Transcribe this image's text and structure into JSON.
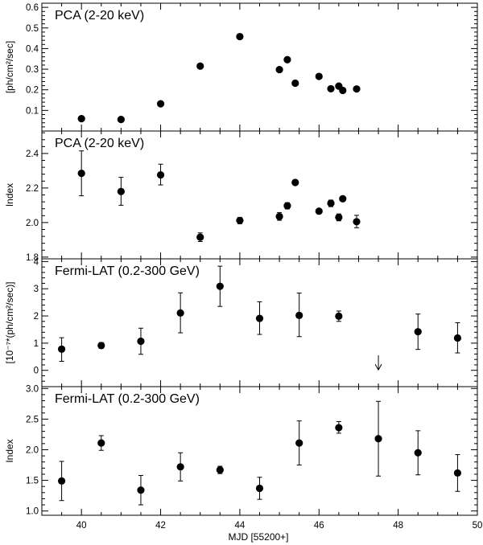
{
  "xaxis": {
    "label": "MJD [55200+]",
    "min": 39,
    "max": 50,
    "ticks": [
      40,
      42,
      44,
      46,
      48,
      50
    ]
  },
  "chart_data": [
    {
      "type": "scatter",
      "title": "PCA (2-20 keV)",
      "ylabel": "[ph/cm²/sec]",
      "ylim": [
        0,
        0.62
      ],
      "yticks": [
        0.1,
        0.2,
        0.3,
        0.4,
        0.5,
        0.6
      ],
      "points": [
        {
          "x": 40.0,
          "y": 0.06
        },
        {
          "x": 41.0,
          "y": 0.056
        },
        {
          "x": 42.0,
          "y": 0.132
        },
        {
          "x": 43.0,
          "y": 0.315
        },
        {
          "x": 44.0,
          "y": 0.458
        },
        {
          "x": 45.0,
          "y": 0.298
        },
        {
          "x": 45.2,
          "y": 0.346
        },
        {
          "x": 45.4,
          "y": 0.232
        },
        {
          "x": 46.0,
          "y": 0.265
        },
        {
          "x": 46.3,
          "y": 0.205
        },
        {
          "x": 46.5,
          "y": 0.218
        },
        {
          "x": 46.6,
          "y": 0.197
        },
        {
          "x": 46.95,
          "y": 0.204
        }
      ]
    },
    {
      "type": "scatter",
      "title": "PCA (2-20 keV)",
      "ylabel": "Index",
      "ylim": [
        1.79,
        2.53
      ],
      "yticks": [
        1.8,
        2.0,
        2.2,
        2.4
      ],
      "points": [
        {
          "x": 40.0,
          "y": 2.285,
          "lo": 2.155,
          "hi": 2.415
        },
        {
          "x": 41.0,
          "y": 2.18,
          "lo": 2.1,
          "hi": 2.262
        },
        {
          "x": 42.0,
          "y": 2.276,
          "lo": 2.218,
          "hi": 2.338
        },
        {
          "x": 43.0,
          "y": 1.915,
          "lo": 1.89,
          "hi": 1.94
        },
        {
          "x": 44.0,
          "y": 2.012,
          "lo": 1.993,
          "hi": 2.03
        },
        {
          "x": 45.0,
          "y": 2.035,
          "lo": 2.013,
          "hi": 2.058
        },
        {
          "x": 45.2,
          "y": 2.097,
          "lo": 2.079,
          "hi": 2.115
        },
        {
          "x": 45.4,
          "y": 2.232,
          "lo": 2.224,
          "hi": 2.24
        },
        {
          "x": 46.0,
          "y": 2.066,
          "lo": 2.06,
          "hi": 2.072
        },
        {
          "x": 46.3,
          "y": 2.112,
          "lo": 2.092,
          "hi": 2.13
        },
        {
          "x": 46.5,
          "y": 2.03,
          "lo": 2.01,
          "hi": 2.05
        },
        {
          "x": 46.6,
          "y": 2.138,
          "lo": 2.13,
          "hi": 2.146
        },
        {
          "x": 46.95,
          "y": 2.005,
          "lo": 1.97,
          "hi": 2.042
        }
      ]
    },
    {
      "type": "scatter",
      "title": "Fermi-LAT (0.2-300 GeV)",
      "ylabel": "[10⁻⁷*(ph/cm²/sec)]",
      "ylim": [
        -0.6,
        4.1
      ],
      "yticks": [
        0,
        1,
        2,
        3,
        4
      ],
      "points": [
        {
          "x": 39.5,
          "y": 0.78,
          "lo": 0.33,
          "hi": 1.2
        },
        {
          "x": 40.5,
          "y": 0.91,
          "lo": 0.81,
          "hi": 1.02
        },
        {
          "x": 41.5,
          "y": 1.07,
          "lo": 0.59,
          "hi": 1.55
        },
        {
          "x": 42.5,
          "y": 2.11,
          "lo": 1.38,
          "hi": 2.85
        },
        {
          "x": 43.5,
          "y": 3.09,
          "lo": 2.35,
          "hi": 3.83
        },
        {
          "x": 44.5,
          "y": 1.91,
          "lo": 1.32,
          "hi": 2.52
        },
        {
          "x": 45.5,
          "y": 2.02,
          "lo": 1.24,
          "hi": 2.84
        },
        {
          "x": 46.5,
          "y": 1.99,
          "lo": 1.8,
          "hi": 2.18
        },
        {
          "x": 48.5,
          "y": 1.42,
          "lo": 0.77,
          "hi": 2.07
        },
        {
          "x": 49.5,
          "y": 1.19,
          "lo": 0.64,
          "hi": 1.75
        }
      ],
      "upper_limits": [
        {
          "x": 47.5,
          "y": 0.55
        }
      ]
    },
    {
      "type": "scatter",
      "title": "Fermi-LAT (0.2-300 GeV)",
      "ylabel": "Index",
      "ylim": [
        0.93,
        3.03
      ],
      "yticks": [
        1.0,
        1.5,
        2.0,
        2.5,
        3.0
      ],
      "points": [
        {
          "x": 39.5,
          "y": 1.49,
          "lo": 1.17,
          "hi": 1.81
        },
        {
          "x": 40.5,
          "y": 2.11,
          "lo": 1.99,
          "hi": 2.23
        },
        {
          "x": 41.5,
          "y": 1.34,
          "lo": 1.1,
          "hi": 1.58
        },
        {
          "x": 42.5,
          "y": 1.72,
          "lo": 1.49,
          "hi": 1.95
        },
        {
          "x": 43.5,
          "y": 1.67,
          "lo": 1.61,
          "hi": 1.73
        },
        {
          "x": 44.5,
          "y": 1.37,
          "lo": 1.19,
          "hi": 1.55
        },
        {
          "x": 45.5,
          "y": 2.11,
          "lo": 1.75,
          "hi": 2.47
        },
        {
          "x": 46.5,
          "y": 2.36,
          "lo": 2.27,
          "hi": 2.46
        },
        {
          "x": 47.5,
          "y": 2.18,
          "lo": 1.57,
          "hi": 2.79
        },
        {
          "x": 48.5,
          "y": 1.95,
          "lo": 1.59,
          "hi": 2.31
        },
        {
          "x": 49.5,
          "y": 1.62,
          "lo": 1.32,
          "hi": 1.92
        }
      ]
    }
  ]
}
